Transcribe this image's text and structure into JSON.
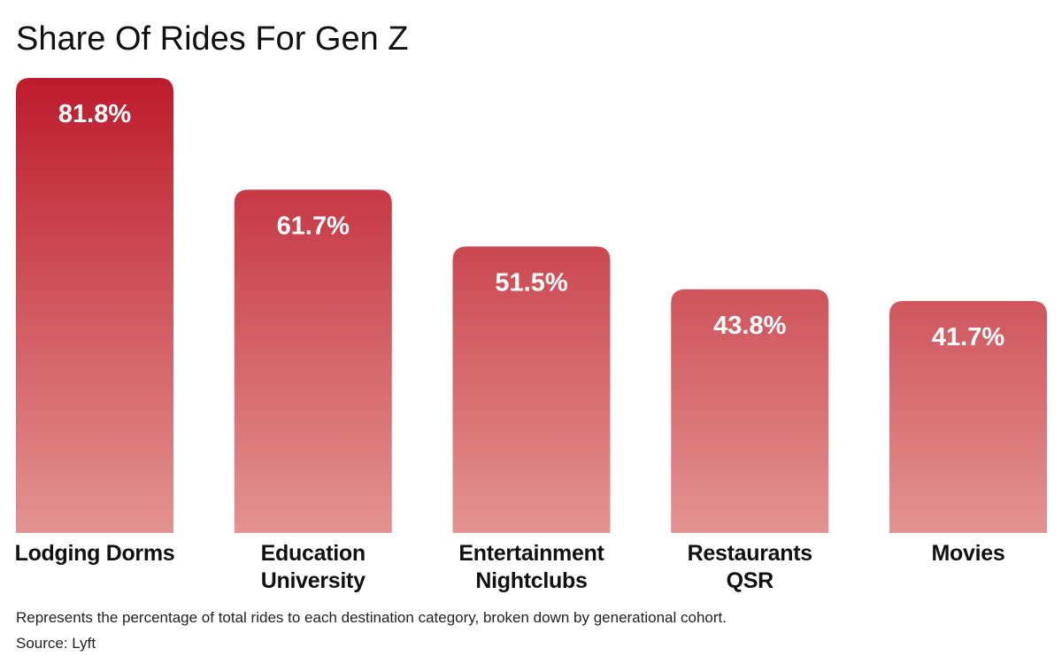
{
  "chart_data": {
    "type": "bar",
    "title": "Share Of Rides For Gen Z",
    "categories": [
      "Lodging Dorms",
      "Education\nUniversity",
      "Entertainment\nNightclubs",
      "Restaurants\nQSR",
      "Movies"
    ],
    "values": [
      81.8,
      61.7,
      51.5,
      43.8,
      41.7
    ],
    "value_labels": [
      "81.8%",
      "61.7%",
      "51.5%",
      "43.8%",
      "41.7%"
    ],
    "colors": [
      "#bd1b2c",
      "#e39391"
    ],
    "note": "Represents the percentage of total rides to each destination category, broken down by generational cohort.",
    "source": "Source: Lyft"
  }
}
